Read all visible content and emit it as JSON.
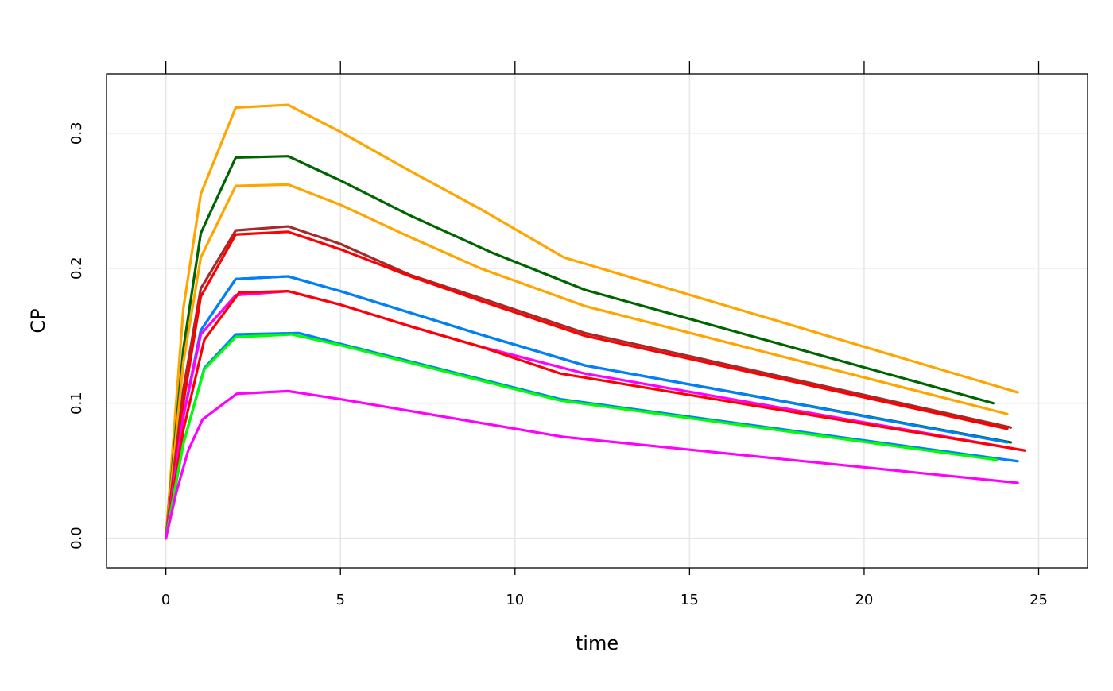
{
  "chart_data": {
    "type": "line",
    "title": "",
    "xlabel": "time",
    "ylabel": "CP",
    "xlim": [
      -1.7,
      26.4
    ],
    "ylim": [
      -0.022,
      0.344
    ],
    "x_ticks": [
      "0",
      "5",
      "10",
      "15",
      "20",
      "25"
    ],
    "y_ticks": [
      "0.0",
      "0.1",
      "0.2",
      "0.3"
    ],
    "grid": true,
    "series": [
      {
        "color": "#FFA500",
        "x": [
          0,
          0.5,
          1.0,
          2.0,
          3.5,
          5,
          7,
          9,
          11.4,
          24.4
        ],
        "y": [
          0,
          0.17,
          0.255,
          0.319,
          0.321,
          0.301,
          0.272,
          0.244,
          0.208,
          0.108
        ]
      },
      {
        "color": "#006400",
        "x": [
          0,
          0.5,
          1.0,
          2.0,
          3.5,
          5,
          7,
          9.3,
          12,
          23.7
        ],
        "y": [
          0,
          0.14,
          0.226,
          0.282,
          0.283,
          0.265,
          0.239,
          0.212,
          0.184,
          0.1
        ]
      },
      {
        "color": "#FFA500",
        "x": [
          0,
          0.5,
          1.0,
          2.0,
          3.5,
          5,
          7,
          9,
          12,
          24.1
        ],
        "y": [
          0,
          0.13,
          0.208,
          0.261,
          0.262,
          0.247,
          0.223,
          0.2,
          0.172,
          0.092
        ]
      },
      {
        "color": "#A52A2A",
        "x": [
          0,
          0.5,
          1.0,
          2.0,
          3.5,
          5,
          7,
          9,
          12,
          24.2
        ],
        "y": [
          0,
          0.11,
          0.185,
          0.228,
          0.231,
          0.218,
          0.195,
          0.178,
          0.152,
          0.082
        ]
      },
      {
        "color": "#FF0000",
        "x": [
          0,
          0.5,
          1.0,
          2.0,
          3.5,
          5,
          7,
          9,
          12,
          24.1
        ],
        "y": [
          0,
          0.1,
          0.179,
          0.225,
          0.227,
          0.214,
          0.194,
          0.176,
          0.15,
          0.081
        ]
      },
      {
        "color": "#006400",
        "x": [
          0,
          0.5,
          1.0,
          2.0,
          3.5,
          5,
          9,
          12,
          24.2
        ],
        "y": [
          0,
          0.09,
          0.154,
          0.192,
          0.194,
          0.183,
          0.151,
          0.128,
          0.071
        ]
      },
      {
        "color": "#0080FF",
        "x": [
          0,
          0.5,
          1.0,
          2.0,
          3.5,
          5,
          9,
          12,
          24.1
        ],
        "y": [
          0,
          0.09,
          0.154,
          0.192,
          0.194,
          0.183,
          0.151,
          0.128,
          0.071
        ]
      },
      {
        "color": "#FF00FF",
        "x": [
          0,
          0.5,
          1.0,
          2.0,
          3.5,
          5,
          7,
          9,
          12,
          24.6
        ],
        "y": [
          0,
          0.09,
          0.151,
          0.18,
          0.183,
          0.173,
          0.157,
          0.142,
          0.122,
          0.065
        ]
      },
      {
        "color": "#FF0000",
        "x": [
          0,
          0.5,
          1.1,
          2.1,
          3.5,
          5,
          7,
          9,
          11.3,
          24.6
        ],
        "y": [
          0,
          0.08,
          0.147,
          0.182,
          0.183,
          0.173,
          0.157,
          0.142,
          0.122,
          0.065
        ]
      },
      {
        "color": "#0080FF",
        "x": [
          0,
          0.5,
          1.1,
          2.0,
          3.8,
          5,
          11.3,
          24.4
        ],
        "y": [
          0,
          0.07,
          0.126,
          0.151,
          0.152,
          0.144,
          0.103,
          0.057
        ]
      },
      {
        "color": "#00FF00",
        "x": [
          0,
          0.5,
          1.1,
          2.0,
          3.6,
          5,
          11.3,
          23.8
        ],
        "y": [
          0,
          0.07,
          0.125,
          0.149,
          0.151,
          0.143,
          0.102,
          0.058
        ]
      },
      {
        "color": "#FF00FF",
        "x": [
          0,
          0.3,
          0.64,
          1.05,
          2.03,
          3.5,
          5,
          11.4,
          24.4
        ],
        "y": [
          0,
          0.034,
          0.065,
          0.088,
          0.107,
          0.109,
          0.103,
          0.075,
          0.041
        ]
      }
    ]
  }
}
